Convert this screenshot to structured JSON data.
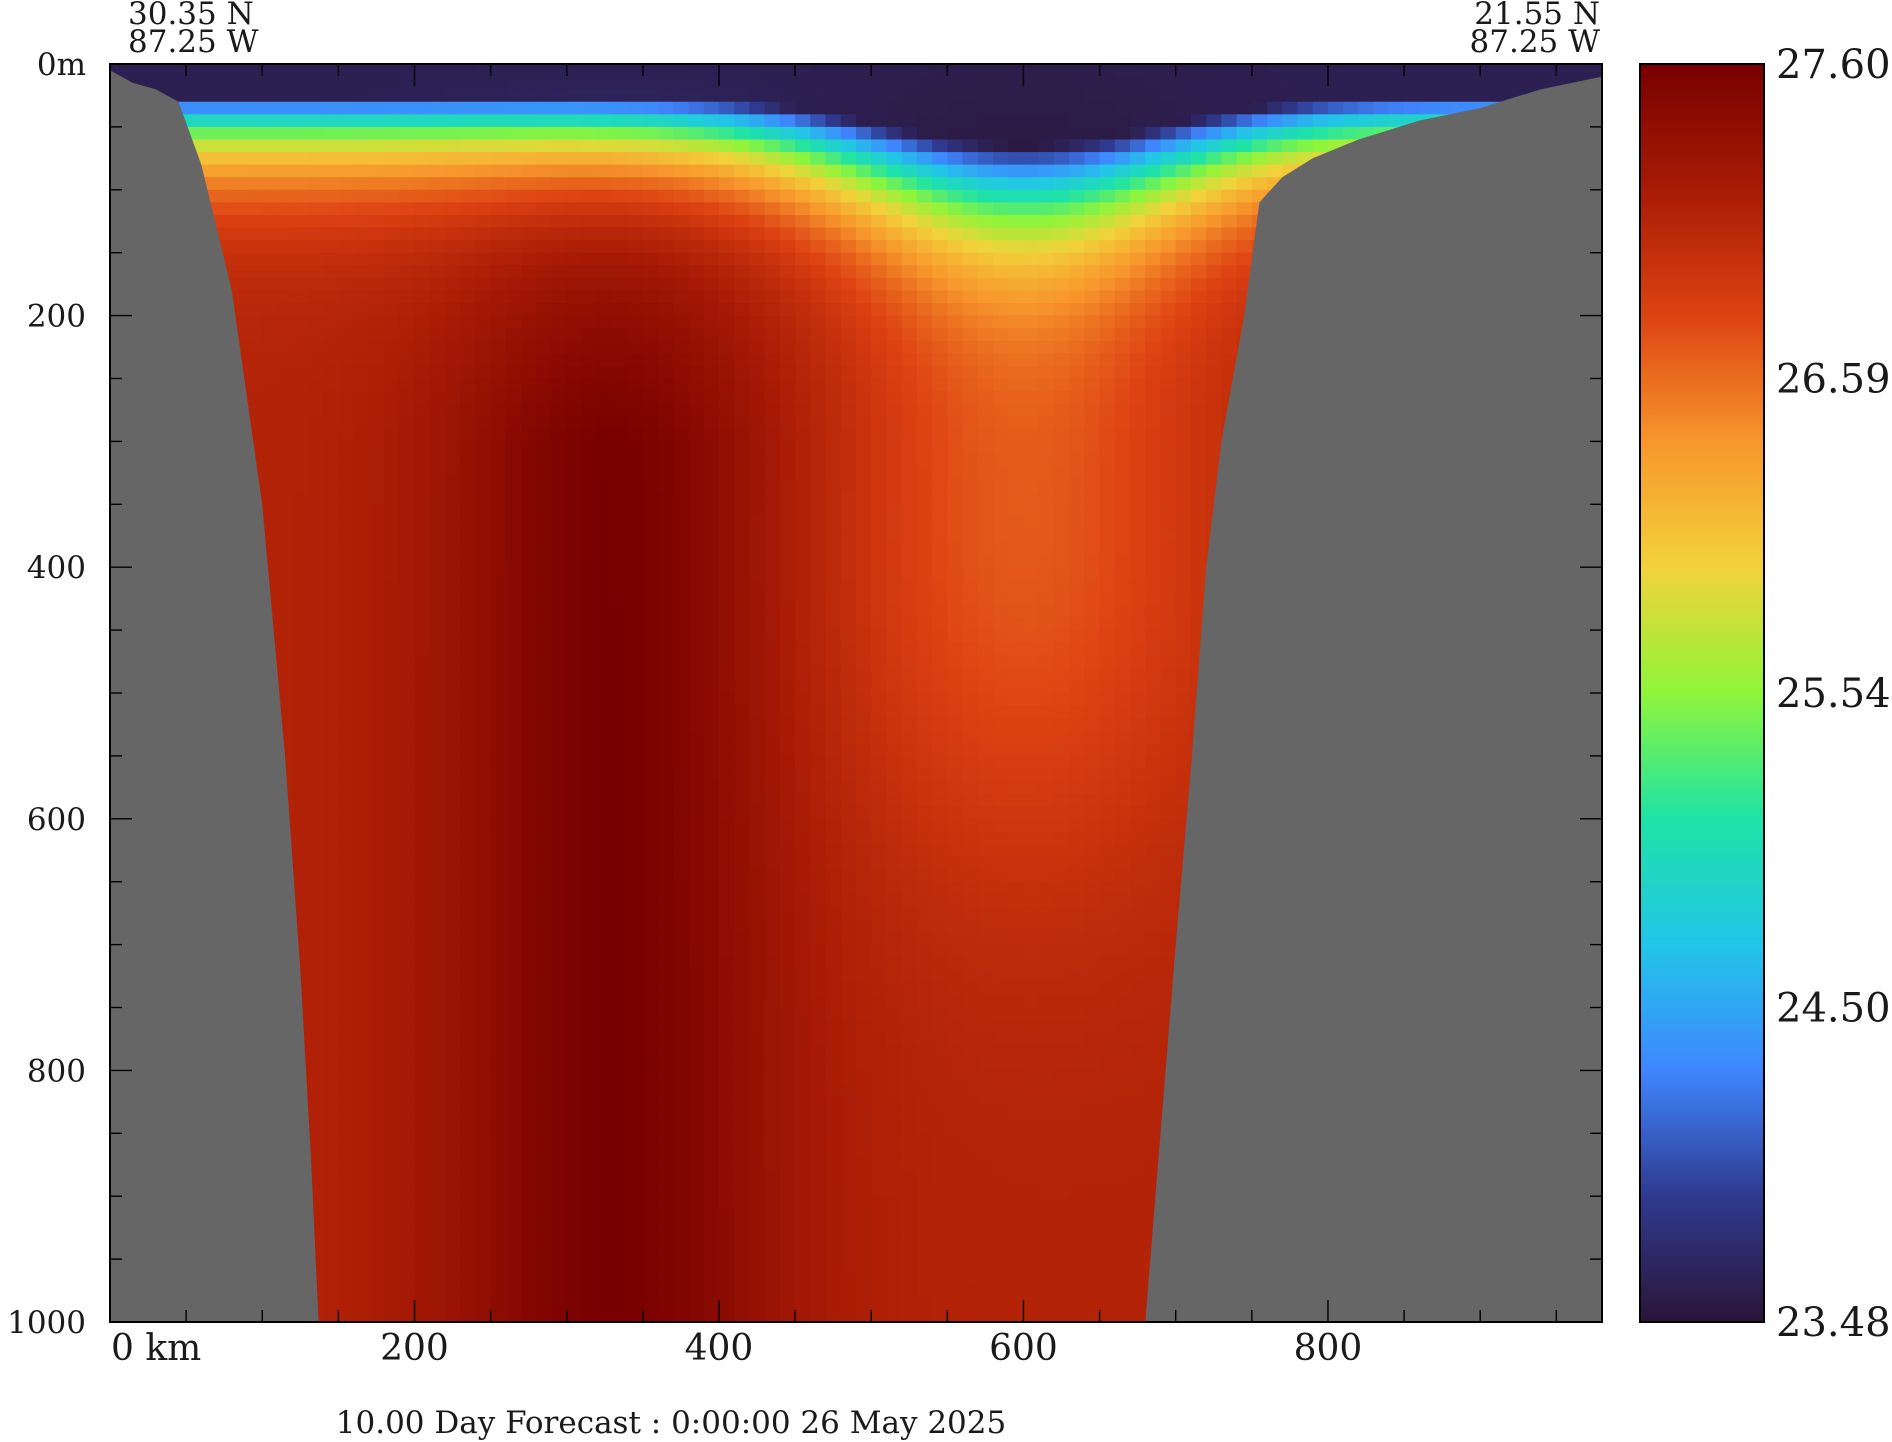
{
  "chart_data": {
    "type": "heatmap",
    "title": "",
    "footer": "10.00 Day Forecast :  0:00:00  26 May 2025",
    "start_location": {
      "lat": "30.35 N",
      "lon": "87.25 W"
    },
    "end_location": {
      "lat": "21.55 N",
      "lon": "87.25 W"
    },
    "x_axis": {
      "unit_label": "km",
      "range": [
        0,
        980
      ],
      "ticks": [
        0,
        200,
        400,
        600,
        800
      ],
      "tick_labels": [
        "0 km",
        "200",
        "400",
        "600",
        "800"
      ],
      "minor_step": 50
    },
    "y_axis": {
      "range": [
        0,
        1000
      ],
      "inverted": true,
      "ticks": [
        0,
        200,
        400,
        600,
        800,
        1000
      ],
      "tick_labels": [
        "0m",
        "200",
        "400",
        "600",
        "800",
        "1000"
      ],
      "minor_step": 50
    },
    "colorbar": {
      "min": 23.48,
      "max": 27.6,
      "tick_labels": [
        "27.60",
        "26.59",
        "25.54",
        "24.50",
        "23.48"
      ],
      "colors": [
        "#2b1538",
        "#2f3a8f",
        "#3f86ff",
        "#22c5e8",
        "#1ee3a6",
        "#8ff53a",
        "#f2d23a",
        "#f7962c",
        "#dd4212",
        "#a81b05",
        "#780000"
      ]
    },
    "bathymetry_depth_m": [
      {
        "x": 0,
        "depth": 5
      },
      {
        "x": 15,
        "depth": 15
      },
      {
        "x": 30,
        "depth": 20
      },
      {
        "x": 45,
        "depth": 30
      },
      {
        "x": 60,
        "depth": 80
      },
      {
        "x": 80,
        "depth": 180
      },
      {
        "x": 100,
        "depth": 350
      },
      {
        "x": 115,
        "depth": 550
      },
      {
        "x": 125,
        "depth": 720
      },
      {
        "x": 132,
        "depth": 870
      },
      {
        "x": 137,
        "depth": 1000
      },
      {
        "x": 680,
        "depth": 1000
      },
      {
        "x": 690,
        "depth": 850
      },
      {
        "x": 700,
        "depth": 700
      },
      {
        "x": 710,
        "depth": 560
      },
      {
        "x": 720,
        "depth": 400
      },
      {
        "x": 730,
        "depth": 300
      },
      {
        "x": 745,
        "depth": 200
      },
      {
        "x": 755,
        "depth": 110
      },
      {
        "x": 770,
        "depth": 90
      },
      {
        "x": 790,
        "depth": 75
      },
      {
        "x": 820,
        "depth": 60
      },
      {
        "x": 860,
        "depth": 45
      },
      {
        "x": 900,
        "depth": 35
      },
      {
        "x": 940,
        "depth": 20
      },
      {
        "x": 980,
        "depth": 10
      }
    ],
    "temperature_profile": {
      "description_depths_m": [
        0,
        40,
        90,
        160,
        260,
        500,
        1000
      ],
      "west_warm_core_x_km": 330,
      "mixed_layer_top_value": 23.5,
      "deep_core_value": 27.6
    }
  }
}
